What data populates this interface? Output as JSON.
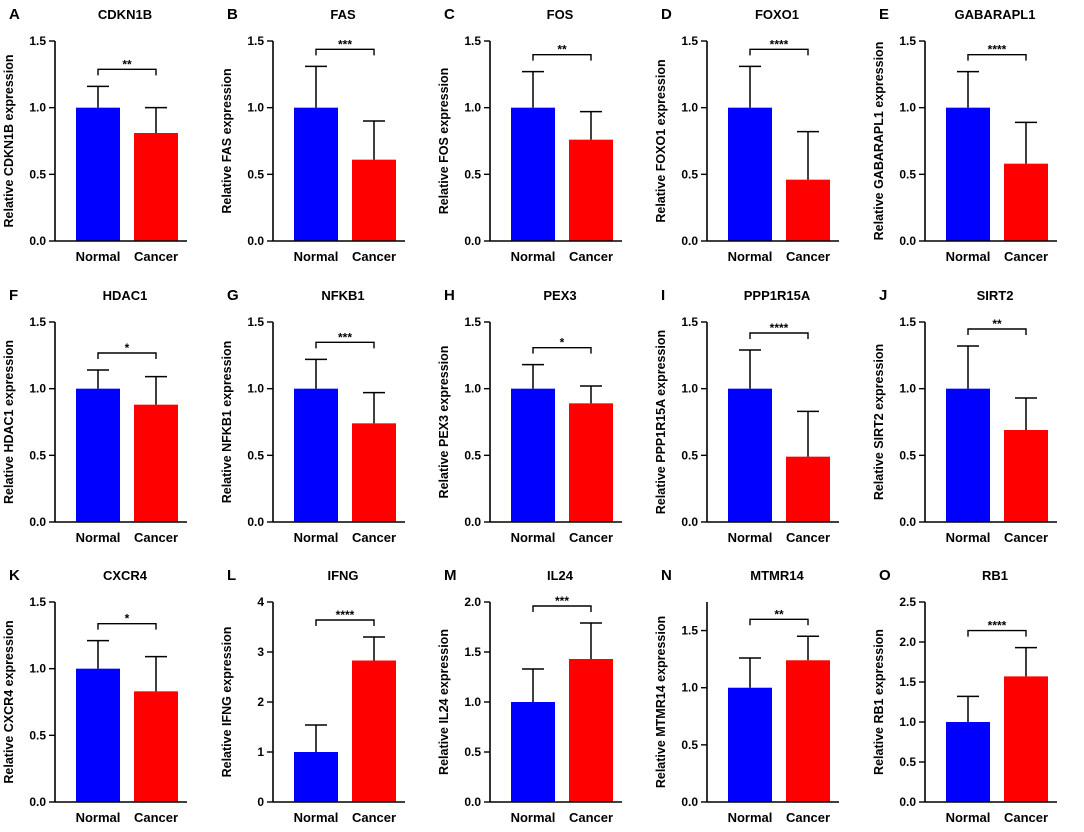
{
  "colors": {
    "normal": "#0000ff",
    "cancer": "#ff0000",
    "axis": "#000000"
  },
  "chart_data": [
    {
      "type": "bar",
      "panel": "A",
      "title": "CDKN1B",
      "ylabel": "Relative CDKN1B expression",
      "categories": [
        "Normal",
        "Cancer"
      ],
      "values": [
        1.0,
        0.81
      ],
      "errors": [
        0.16,
        0.19
      ],
      "ylim": [
        0,
        1.5
      ],
      "yticks": [
        0,
        0.5,
        1.0,
        1.5
      ],
      "ytick_labels": [
        "0.0",
        "0.5",
        "1.0",
        "1.5"
      ],
      "significance": "**"
    },
    {
      "type": "bar",
      "panel": "B",
      "title": "FAS",
      "ylabel": "Relative FAS expression",
      "categories": [
        "Normal",
        "Cancer"
      ],
      "values": [
        1.0,
        0.61
      ],
      "errors": [
        0.31,
        0.29
      ],
      "ylim": [
        0,
        1.5
      ],
      "yticks": [
        0,
        0.5,
        1.0,
        1.5
      ],
      "ytick_labels": [
        "0.0",
        "0.5",
        "1.0",
        "1.5"
      ],
      "significance": "***"
    },
    {
      "type": "bar",
      "panel": "C",
      "title": "FOS",
      "ylabel": "Relative FOS expression",
      "categories": [
        "Normal",
        "Cancer"
      ],
      "values": [
        1.0,
        0.76
      ],
      "errors": [
        0.27,
        0.21
      ],
      "ylim": [
        0,
        1.5
      ],
      "yticks": [
        0,
        0.5,
        1.0,
        1.5
      ],
      "ytick_labels": [
        "0.0",
        "0.5",
        "1.0",
        "1.5"
      ],
      "significance": "**"
    },
    {
      "type": "bar",
      "panel": "D",
      "title": "FOXO1",
      "ylabel": "Relative FOXO1 expression",
      "categories": [
        "Normal",
        "Cancer"
      ],
      "values": [
        1.0,
        0.46
      ],
      "errors": [
        0.31,
        0.36
      ],
      "ylim": [
        0,
        1.5
      ],
      "yticks": [
        0,
        0.5,
        1.0,
        1.5
      ],
      "ytick_labels": [
        "0.0",
        "0.5",
        "1.0",
        "1.5"
      ],
      "significance": "****"
    },
    {
      "type": "bar",
      "panel": "E",
      "title": "GABARAPL1",
      "ylabel": "Relative GABARAPL1 expression",
      "categories": [
        "Normal",
        "Cancer"
      ],
      "values": [
        1.0,
        0.58
      ],
      "errors": [
        0.27,
        0.31
      ],
      "ylim": [
        0,
        1.5
      ],
      "yticks": [
        0,
        0.5,
        1.0,
        1.5
      ],
      "ytick_labels": [
        "0.0",
        "0.5",
        "1.0",
        "1.5"
      ],
      "significance": "****"
    },
    {
      "type": "bar",
      "panel": "F",
      "title": "HDAC1",
      "ylabel": "Relative HDAC1 expression",
      "categories": [
        "Normal",
        "Cancer"
      ],
      "values": [
        1.0,
        0.88
      ],
      "errors": [
        0.14,
        0.21
      ],
      "ylim": [
        0,
        1.5
      ],
      "yticks": [
        0,
        0.5,
        1.0,
        1.5
      ],
      "ytick_labels": [
        "0.0",
        "0.5",
        "1.0",
        "1.5"
      ],
      "significance": "*"
    },
    {
      "type": "bar",
      "panel": "G",
      "title": "NFKB1",
      "ylabel": "Relative NFKB1 expression",
      "categories": [
        "Normal",
        "Cancer"
      ],
      "values": [
        1.0,
        0.74
      ],
      "errors": [
        0.22,
        0.23
      ],
      "ylim": [
        0,
        1.5
      ],
      "yticks": [
        0,
        0.5,
        1.0,
        1.5
      ],
      "ytick_labels": [
        "0.0",
        "0.5",
        "1.0",
        "1.5"
      ],
      "significance": "***"
    },
    {
      "type": "bar",
      "panel": "H",
      "title": "PEX3",
      "ylabel": "Relative PEX3 expression",
      "categories": [
        "Normal",
        "Cancer"
      ],
      "values": [
        1.0,
        0.89
      ],
      "errors": [
        0.18,
        0.13
      ],
      "ylim": [
        0,
        1.5
      ],
      "yticks": [
        0,
        0.5,
        1.0,
        1.5
      ],
      "ytick_labels": [
        "0.0",
        "0.5",
        "1.0",
        "1.5"
      ],
      "significance": "*"
    },
    {
      "type": "bar",
      "panel": "I",
      "title": "PPP1R15A",
      "ylabel": "Relative PPP1R15A expression",
      "categories": [
        "Normal",
        "Cancer"
      ],
      "values": [
        1.0,
        0.49
      ],
      "errors": [
        0.29,
        0.34
      ],
      "ylim": [
        0,
        1.5
      ],
      "yticks": [
        0,
        0.5,
        1.0,
        1.5
      ],
      "ytick_labels": [
        "0.0",
        "0.5",
        "1.0",
        "1.5"
      ],
      "significance": "****"
    },
    {
      "type": "bar",
      "panel": "J",
      "title": "SIRT2",
      "ylabel": "Relative SIRT2 expression",
      "categories": [
        "Normal",
        "Cancer"
      ],
      "values": [
        1.0,
        0.69
      ],
      "errors": [
        0.32,
        0.24
      ],
      "ylim": [
        0,
        1.5
      ],
      "yticks": [
        0,
        0.5,
        1.0,
        1.5
      ],
      "ytick_labels": [
        "0.0",
        "0.5",
        "1.0",
        "1.5"
      ],
      "significance": "**"
    },
    {
      "type": "bar",
      "panel": "K",
      "title": "CXCR4",
      "ylabel": "Relative CXCR4 expression",
      "categories": [
        "Normal",
        "Cancer"
      ],
      "values": [
        1.0,
        0.83
      ],
      "errors": [
        0.21,
        0.26
      ],
      "ylim": [
        0,
        1.5
      ],
      "yticks": [
        0,
        0.5,
        1.0,
        1.5
      ],
      "ytick_labels": [
        "0.0",
        "0.5",
        "1.0",
        "1.5"
      ],
      "significance": "*"
    },
    {
      "type": "bar",
      "panel": "L",
      "title": "IFNG",
      "ylabel": "Relative IFNG expression",
      "categories": [
        "Normal",
        "Cancer"
      ],
      "values": [
        1.0,
        2.83
      ],
      "errors": [
        0.54,
        0.47
      ],
      "ylim": [
        0,
        4
      ],
      "yticks": [
        0,
        1,
        2,
        3,
        4
      ],
      "ytick_labels": [
        "0",
        "1",
        "2",
        "3",
        "4"
      ],
      "significance": "****"
    },
    {
      "type": "bar",
      "panel": "M",
      "title": "IL24",
      "ylabel": "Relative IL24 expression",
      "categories": [
        "Normal",
        "Cancer"
      ],
      "values": [
        1.0,
        1.43
      ],
      "errors": [
        0.33,
        0.36
      ],
      "ylim": [
        0,
        2.0
      ],
      "yticks": [
        0,
        0.5,
        1.0,
        1.5,
        2.0
      ],
      "ytick_labels": [
        "0.0",
        "0.5",
        "1.0",
        "1.5",
        "2.0"
      ],
      "significance": "***"
    },
    {
      "type": "bar",
      "panel": "N",
      "title": "MTMR14",
      "ylabel": "Relative MTMR14 expression",
      "categories": [
        "Normal",
        "Cancer"
      ],
      "values": [
        1.0,
        1.24
      ],
      "errors": [
        0.26,
        0.21
      ],
      "ylim": [
        0,
        1.75
      ],
      "yticks": [
        0,
        0.5,
        1.0,
        1.5
      ],
      "ytick_labels": [
        "0.0",
        "0.5",
        "1.0",
        "1.5"
      ],
      "significance": "**"
    },
    {
      "type": "bar",
      "panel": "O",
      "title": "RB1",
      "ylabel": "Relative RB1 expression",
      "categories": [
        "Normal",
        "Cancer"
      ],
      "values": [
        1.0,
        1.57
      ],
      "errors": [
        0.32,
        0.36
      ],
      "ylim": [
        0,
        2.5
      ],
      "yticks": [
        0,
        0.5,
        1.0,
        1.5,
        2.0,
        2.5
      ],
      "ytick_labels": [
        "0.0",
        "0.5",
        "1.0",
        "1.5",
        "2.0",
        "2.5"
      ],
      "significance": "****"
    }
  ]
}
